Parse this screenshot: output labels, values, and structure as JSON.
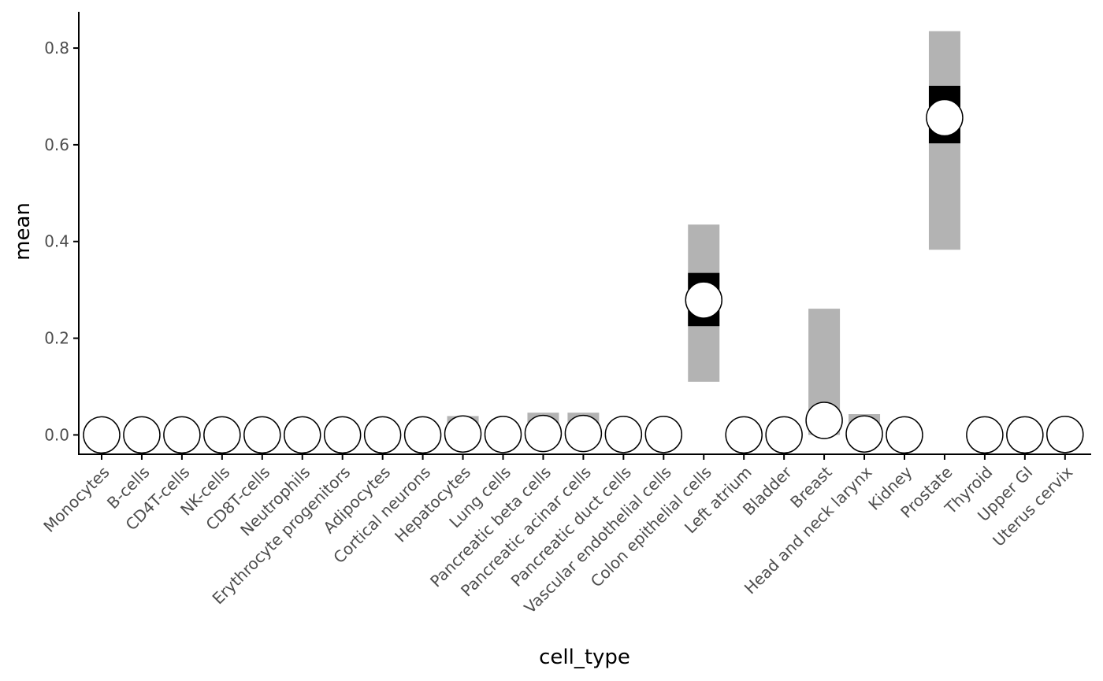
{
  "chart_data": {
    "type": "scatter",
    "xlabel": "cell_type",
    "ylabel": "mean",
    "ylim": [
      -0.04,
      0.875
    ],
    "y_ticks": [
      0.0,
      0.2,
      0.4,
      0.6,
      0.8
    ],
    "y_tick_labels": [
      "0.0",
      "0.2",
      "0.4",
      "0.6",
      "0.8"
    ],
    "grid": false,
    "legend": "none",
    "colors": {
      "outer_interval": "#b3b3b3",
      "inner_interval": "#000000",
      "point_fill": "#ffffff",
      "point_stroke": "#000000",
      "axis": "#000000",
      "tick_label": "#4d4d4d"
    },
    "categories": [
      "Monocytes",
      "B-cells",
      "CD4T-cells",
      "NK-cells",
      "CD8T-cells",
      "Neutrophils",
      "Erythrocyte progenitors",
      "Adipocytes",
      "Cortical neurons",
      "Hepatocytes",
      "Lung cells",
      "Pancreatic beta cells",
      "Pancreatic acinar cells",
      "Pancreatic duct cells",
      "Vascular endothelial cells",
      "Colon epithelial cells",
      "Left atrium",
      "Bladder",
      "Breast",
      "Head and neck larynx",
      "Kidney",
      "Prostate",
      "Thyroid",
      "Upper GI",
      "Uterus cervix"
    ],
    "mean": [
      0.0,
      0.0,
      0.0,
      0.0,
      0.0,
      0.0,
      0.0,
      0.0,
      0.0,
      0.002,
      0.001,
      0.003,
      0.003,
      0.001,
      0.001,
      0.279,
      0.0,
      0.0,
      0.03,
      0.002,
      0.0,
      0.656,
      0.0,
      0.0,
      0.001
    ],
    "outer_low": [
      0.0,
      0.0,
      0.0,
      0.0,
      0.0,
      0.0,
      0.0,
      0.0,
      0.0,
      0.0,
      0.0,
      0.0,
      0.0,
      0.0,
      0.0,
      0.11,
      0.0,
      0.0,
      0.0,
      0.0,
      0.0,
      0.383,
      0.0,
      0.0,
      0.0
    ],
    "outer_high": [
      0.0,
      0.0,
      0.0,
      0.0,
      0.0,
      0.0,
      0.0,
      0.0,
      0.0,
      0.039,
      0.0,
      0.046,
      0.046,
      0.0,
      0.0,
      0.435,
      0.0,
      0.0,
      0.261,
      0.043,
      0.0,
      0.835,
      0.0,
      0.0,
      0.0
    ],
    "inner_low": [
      0.0,
      0.0,
      0.0,
      0.0,
      0.0,
      0.0,
      0.0,
      0.0,
      0.0,
      0.0,
      0.0,
      0.0,
      0.0,
      0.0,
      0.0,
      0.225,
      0.0,
      0.0,
      0.0,
      0.0,
      0.0,
      0.603,
      0.0,
      0.0,
      0.0
    ],
    "inner_high": [
      0.0,
      0.0,
      0.0,
      0.0,
      0.0,
      0.0,
      0.0,
      0.0,
      0.0,
      0.0,
      0.0,
      0.0,
      0.0,
      0.0,
      0.0,
      0.335,
      0.0,
      0.0,
      0.0,
      0.0,
      0.0,
      0.722,
      0.0,
      0.0,
      0.0
    ]
  }
}
